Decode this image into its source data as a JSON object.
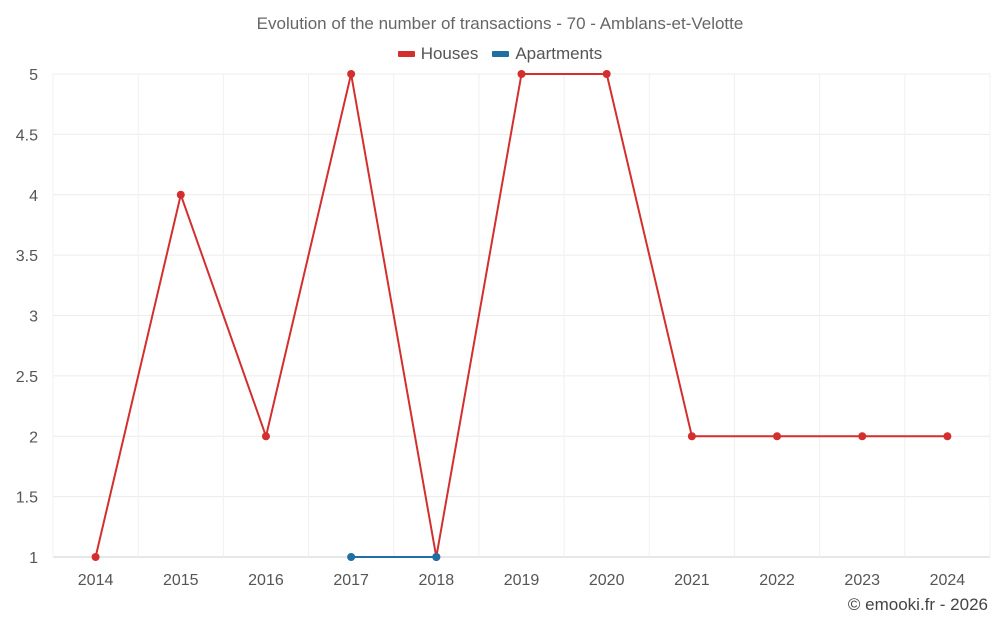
{
  "chart_data": {
    "type": "line",
    "title": "Evolution of the number of transactions - 70 - Amblans-et-Velotte",
    "xlabel": "",
    "ylabel": "",
    "x": [
      2014,
      2015,
      2016,
      2017,
      2018,
      2019,
      2020,
      2021,
      2022,
      2023,
      2024
    ],
    "ylim": [
      1,
      5
    ],
    "yticks": [
      "1",
      "1.5",
      "2",
      "2.5",
      "3",
      "3.5",
      "4",
      "4.5",
      "5"
    ],
    "grid": true,
    "legend_position": "top-center",
    "series": [
      {
        "name": "Houses",
        "color": "#d32f2f",
        "values": [
          1,
          4,
          2,
          5,
          1,
          5,
          5,
          2,
          2,
          2,
          2
        ]
      },
      {
        "name": "Apartments",
        "color": "#1f6fa3",
        "values": [
          null,
          null,
          null,
          1,
          1,
          null,
          null,
          null,
          null,
          null,
          null
        ]
      }
    ]
  },
  "credit": "© emooki.fr - 2026"
}
